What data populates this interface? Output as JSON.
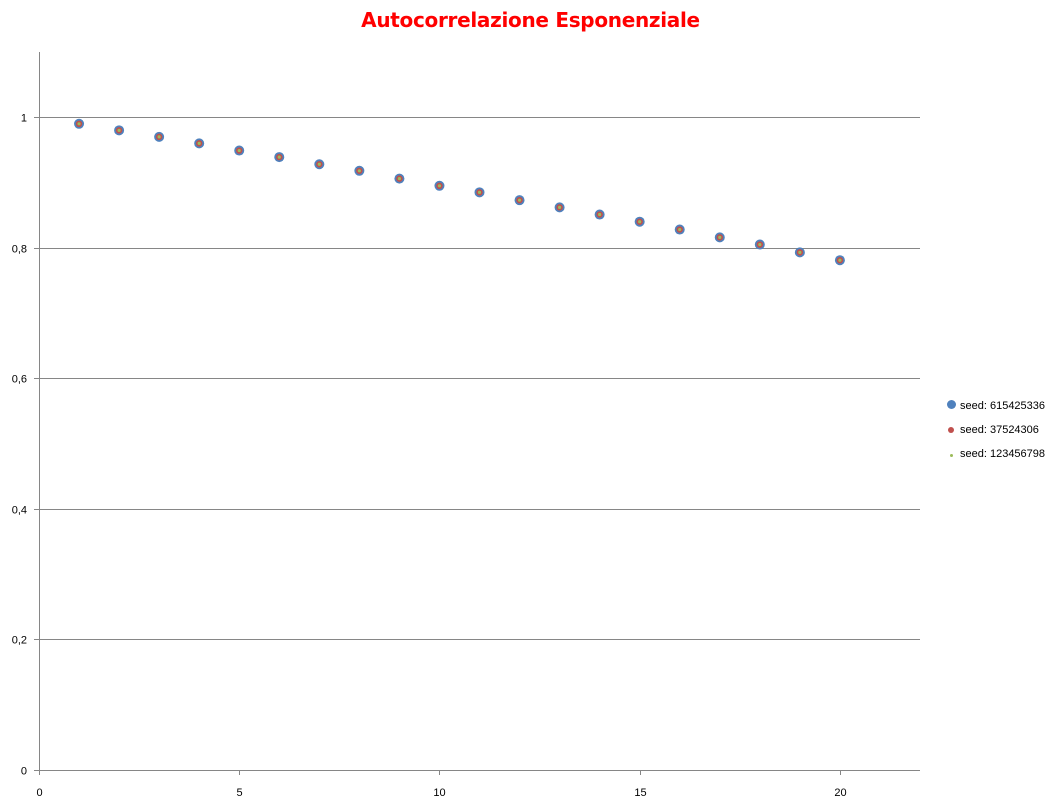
{
  "chart_data": {
    "type": "scatter",
    "title": "Autocorrelazione Esponenziale",
    "xlabel": "",
    "ylabel": "",
    "xlim": [
      0,
      22
    ],
    "ylim": [
      0,
      1.1
    ],
    "xticks": [
      0,
      5,
      10,
      15,
      20
    ],
    "xtick_labels": [
      "0",
      "5",
      "10",
      "15",
      "20"
    ],
    "yticks": [
      0,
      0.2,
      0.4,
      0.6,
      0.8,
      1
    ],
    "ytick_labels": [
      "0",
      "0,2",
      "0,4",
      "0,6",
      "0,8",
      "1"
    ],
    "grid": "horizontal",
    "legend_position": "right",
    "series": [
      {
        "name": "seed: 615425336",
        "color": "#4f81bd",
        "marker": "large-circle",
        "x": [
          1,
          2,
          3,
          4,
          5,
          6,
          7,
          8,
          9,
          10,
          11,
          12,
          13,
          14,
          15,
          16,
          17,
          18,
          19,
          20
        ],
        "y": [
          0.99,
          0.98,
          0.97,
          0.96,
          0.949,
          0.939,
          0.928,
          0.918,
          0.906,
          0.895,
          0.885,
          0.873,
          0.862,
          0.851,
          0.84,
          0.828,
          0.816,
          0.805,
          0.793,
          0.781
        ]
      },
      {
        "name": "seed: 37524306",
        "color": "#c0504d",
        "marker": "medium-circle",
        "x": [
          1,
          2,
          3,
          4,
          5,
          6,
          7,
          8,
          9,
          10,
          11,
          12,
          13,
          14,
          15,
          16,
          17,
          18,
          19,
          20
        ],
        "y": [
          0.99,
          0.98,
          0.97,
          0.96,
          0.949,
          0.939,
          0.928,
          0.918,
          0.906,
          0.895,
          0.885,
          0.873,
          0.862,
          0.851,
          0.84,
          0.828,
          0.816,
          0.805,
          0.793,
          0.781
        ]
      },
      {
        "name": "seed: 123456798",
        "color": "#9bbb59",
        "marker": "small-circle",
        "x": [
          1,
          2,
          3,
          4,
          5,
          6,
          7,
          8,
          9,
          10,
          11,
          12,
          13,
          14,
          15,
          16,
          17,
          18,
          19,
          20
        ],
        "y": [
          0.99,
          0.98,
          0.97,
          0.96,
          0.949,
          0.939,
          0.928,
          0.918,
          0.906,
          0.895,
          0.885,
          0.873,
          0.862,
          0.851,
          0.84,
          0.828,
          0.816,
          0.805,
          0.793,
          0.781
        ]
      }
    ]
  }
}
